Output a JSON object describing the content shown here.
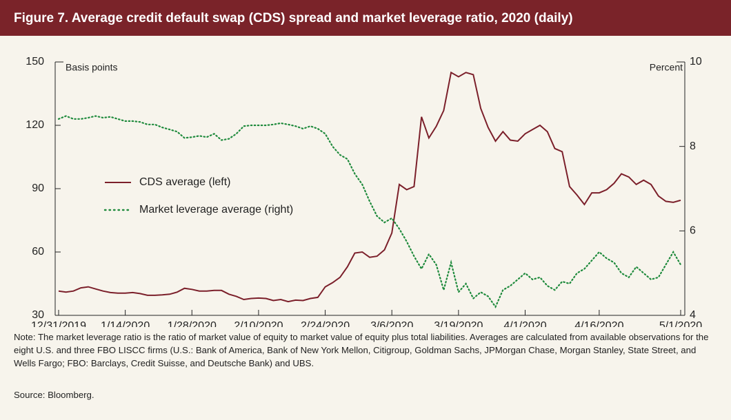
{
  "chart_data": {
    "type": "line",
    "title": "Figure 7. Average credit default swap (CDS) spread and market leverage ratio, 2020 (daily)",
    "ylabel": "Basis points",
    "y2label": "Percent",
    "x": [
      "12/31/2019",
      "1/2/2020",
      "1/3/2020",
      "1/6/2020",
      "1/7/2020",
      "1/8/2020",
      "1/9/2020",
      "1/10/2020",
      "1/13/2020",
      "1/14/2020",
      "1/15/2020",
      "1/16/2020",
      "1/17/2020",
      "1/21/2020",
      "1/22/2020",
      "1/23/2020",
      "1/24/2020",
      "1/27/2020",
      "1/28/2020",
      "1/29/2020",
      "1/30/2020",
      "1/31/2020",
      "2/3/2020",
      "2/4/2020",
      "2/5/2020",
      "2/6/2020",
      "2/7/2020",
      "2/10/2020",
      "2/11/2020",
      "2/12/2020",
      "2/13/2020",
      "2/14/2020",
      "2/18/2020",
      "2/19/2020",
      "2/20/2020",
      "2/21/2020",
      "2/24/2020",
      "2/25/2020",
      "2/26/2020",
      "2/27/2020",
      "2/28/2020",
      "3/2/2020",
      "3/3/2020",
      "3/4/2020",
      "3/5/2020",
      "3/6/2020",
      "3/9/2020",
      "3/10/2020",
      "3/11/2020",
      "3/12/2020",
      "3/13/2020",
      "3/16/2020",
      "3/17/2020",
      "3/18/2020",
      "3/19/2020",
      "3/20/2020",
      "3/23/2020",
      "3/24/2020",
      "3/25/2020",
      "3/26/2020",
      "3/27/2020",
      "3/30/2020",
      "3/31/2020",
      "4/1/2020",
      "4/2/2020",
      "4/3/2020",
      "4/6/2020",
      "4/7/2020",
      "4/8/2020",
      "4/9/2020",
      "4/13/2020",
      "4/14/2020",
      "4/15/2020",
      "4/16/2020",
      "4/17/2020",
      "4/20/2020",
      "4/21/2020",
      "4/22/2020",
      "4/23/2020",
      "4/24/2020",
      "4/27/2020",
      "4/28/2020",
      "4/29/2020",
      "4/30/2020",
      "5/1/2020"
    ],
    "xticks": [
      "12/31/2019",
      "1/14/2020",
      "1/28/2020",
      "2/10/2020",
      "2/24/2020",
      "3/6/2020",
      "3/19/2020",
      "4/1/2020",
      "4/16/2020",
      "5/1/2020"
    ],
    "ylim": [
      30,
      150
    ],
    "yticks": [
      30,
      60,
      90,
      120,
      150
    ],
    "y2lim": [
      4,
      10
    ],
    "y2ticks": [
      4,
      6,
      8,
      10
    ],
    "series": [
      {
        "name": "CDS average (left)",
        "color": "#7b1f2a",
        "style": "solid",
        "values": [
          41.5,
          41,
          41.5,
          43,
          43.5,
          42.5,
          41.5,
          40.8,
          40.5,
          40.5,
          40.8,
          40.3,
          39.5,
          39.5,
          39.7,
          40,
          41,
          42.8,
          42.3,
          41.5,
          41.5,
          41.8,
          41.8,
          40,
          39,
          37.5,
          38,
          38.2,
          38,
          37,
          37.5,
          36.5,
          37.2,
          37,
          38,
          38.5,
          43.5,
          45.5,
          48,
          53,
          59.5,
          60,
          57.5,
          58,
          61,
          69,
          92,
          89.5,
          91,
          124,
          114,
          119.5,
          127,
          145,
          143,
          145,
          144,
          128,
          119,
          112.5,
          117,
          113,
          112.5,
          116,
          118,
          120,
          117,
          109,
          107.5,
          91,
          87,
          82.5,
          88,
          88,
          89.5,
          92.5,
          97,
          95.5,
          92,
          94,
          92,
          86.5,
          84,
          83.5,
          84.5
        ]
      },
      {
        "name": "Market leverage average (right)",
        "color": "#1e8a3c",
        "style": "dotted",
        "axis": "y2",
        "values": [
          8.65,
          8.72,
          8.65,
          8.65,
          8.68,
          8.72,
          8.68,
          8.7,
          8.65,
          8.6,
          8.6,
          8.58,
          8.52,
          8.52,
          8.45,
          8.4,
          8.35,
          8.2,
          8.22,
          8.25,
          8.22,
          8.3,
          8.15,
          8.18,
          8.3,
          8.48,
          8.5,
          8.5,
          8.5,
          8.52,
          8.55,
          8.52,
          8.48,
          8.42,
          8.48,
          8.42,
          8.3,
          8.0,
          7.8,
          7.7,
          7.35,
          7.1,
          6.7,
          6.35,
          6.2,
          6.3,
          6.05,
          5.75,
          5.4,
          5.1,
          5.45,
          5.2,
          4.6,
          5.25,
          4.55,
          4.75,
          4.4,
          4.55,
          4.45,
          4.2,
          4.6,
          4.7,
          4.85,
          5.0,
          4.85,
          4.9,
          4.7,
          4.6,
          4.8,
          4.75,
          5.0,
          5.1,
          5.3,
          5.5,
          5.35,
          5.25,
          5.0,
          4.9,
          5.15,
          5.0,
          4.85,
          4.9,
          5.2,
          5.5,
          5.2
        ]
      }
    ],
    "note": "Note: The market leverage ratio is the ratio of market value of equity to market value of equity plus total liabilities. Averages are calculated from available observations for the eight U.S. and three FBO LISCC firms (U.S.: Bank of America, Bank of New York Mellon, Citigroup, Goldman Sachs, JPMorgan Chase, Morgan Stanley, State Street, and Wells Fargo; FBO: Barclays, Credit Suisse, and Deutsche Bank) and UBS.",
    "source": "Source: Bloomberg."
  }
}
